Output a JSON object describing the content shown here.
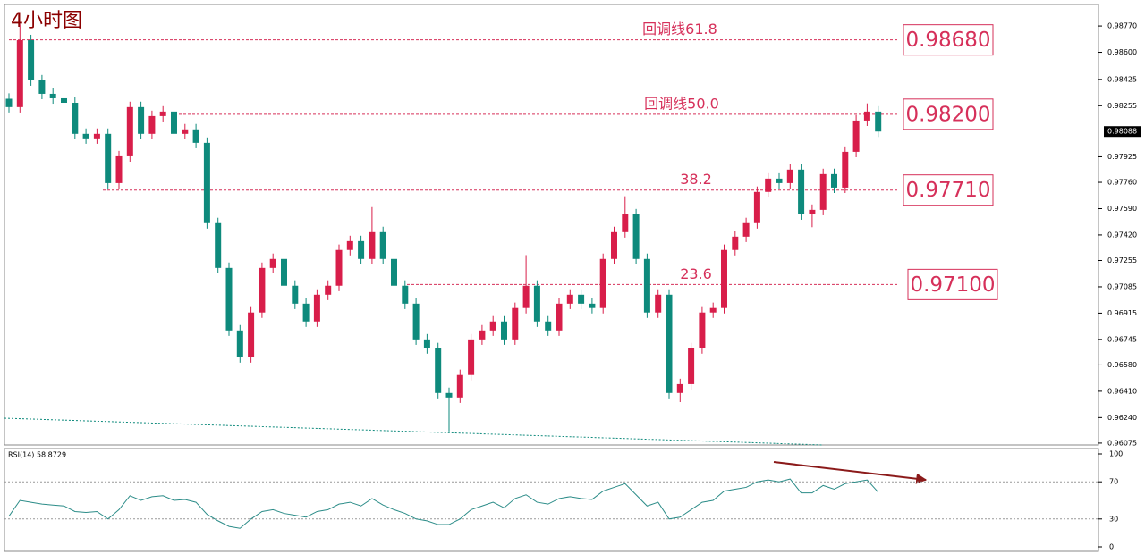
{
  "chart_data": [
    {
      "type": "candlestick",
      "title": "4小时图",
      "open": [
        0.983,
        0.98246,
        0.98678,
        0.98419,
        0.98332,
        0.98303,
        0.98274,
        0.98073,
        0.98044,
        0.98073,
        0.97755,
        0.97928,
        0.98246,
        0.98073,
        0.98188,
        0.98217,
        0.98073,
        0.98102,
        0.98015,
        0.97496,
        0.97207,
        0.96803,
        0.9663,
        0.96919,
        0.97207,
        0.97265,
        0.97092,
        0.96976,
        0.96861,
        0.97034,
        0.97092,
        0.97323,
        0.9738,
        0.97265,
        0.97438,
        0.97265,
        0.97092,
        0.96976,
        0.96745,
        0.96688,
        0.96399,
        0.9637,
        0.96515,
        0.96745,
        0.96803,
        0.96861,
        0.96745,
        0.96948,
        0.97092,
        0.96861,
        0.96803,
        0.96976,
        0.97034,
        0.96976,
        0.96948,
        0.97265,
        0.97438,
        0.97553,
        0.97265,
        0.96919,
        0.97034,
        0.96399,
        0.96456,
        0.96688,
        0.96919,
        0.96948,
        0.97323,
        0.97409,
        0.97496,
        0.97698,
        0.97784,
        0.97755,
        0.97842,
        0.97553,
        0.97582,
        0.97813,
        0.97726,
        0.97957,
        0.98159,
        0.98217
      ],
      "high": [
        0.98335,
        0.9878,
        0.98713,
        0.98454,
        0.98367,
        0.98338,
        0.98309,
        0.98108,
        0.98108,
        0.98108,
        0.97963,
        0.98281,
        0.98281,
        0.98223,
        0.98252,
        0.98252,
        0.98137,
        0.98137,
        0.9805,
        0.97531,
        0.97242,
        0.96838,
        0.96954,
        0.97242,
        0.973,
        0.973,
        0.97127,
        0.97011,
        0.97069,
        0.97127,
        0.97358,
        0.97415,
        0.97415,
        0.976,
        0.97473,
        0.973,
        0.97127,
        0.97011,
        0.9678,
        0.96723,
        0.96434,
        0.9655,
        0.9678,
        0.96838,
        0.96896,
        0.96896,
        0.96983,
        0.9729,
        0.97127,
        0.96896,
        0.97011,
        0.97069,
        0.97069,
        0.97011,
        0.973,
        0.97473,
        0.9767,
        0.97588,
        0.973,
        0.97069,
        0.97069,
        0.96491,
        0.96723,
        0.96954,
        0.96983,
        0.97358,
        0.97444,
        0.97531,
        0.97733,
        0.97819,
        0.97819,
        0.97877,
        0.97877,
        0.97617,
        0.97848,
        0.97848,
        0.97992,
        0.98194,
        0.9827,
        0.98252
      ],
      "low": [
        0.98211,
        0.98211,
        0.98384,
        0.98297,
        0.98268,
        0.98239,
        0.98038,
        0.98009,
        0.98009,
        0.9772,
        0.9772,
        0.97893,
        0.98038,
        0.98038,
        0.98153,
        0.98038,
        0.98038,
        0.9798,
        0.97461,
        0.97172,
        0.96768,
        0.96595,
        0.96595,
        0.96884,
        0.97172,
        0.97057,
        0.96941,
        0.96826,
        0.96826,
        0.96999,
        0.97057,
        0.97288,
        0.9723,
        0.9723,
        0.9723,
        0.97057,
        0.96941,
        0.9671,
        0.96653,
        0.96364,
        0.9615,
        0.96335,
        0.9648,
        0.9671,
        0.96768,
        0.9671,
        0.9671,
        0.96913,
        0.96826,
        0.96768,
        0.96768,
        0.96941,
        0.96941,
        0.96913,
        0.96913,
        0.9723,
        0.97403,
        0.9723,
        0.96884,
        0.96884,
        0.96364,
        0.9634,
        0.96421,
        0.96653,
        0.96884,
        0.96913,
        0.97288,
        0.97374,
        0.97461,
        0.97663,
        0.9772,
        0.9772,
        0.97518,
        0.9747,
        0.97547,
        0.97691,
        0.97691,
        0.97922,
        0.98124,
        0.98053
      ],
      "close": [
        0.98246,
        0.98678,
        0.98419,
        0.98332,
        0.98303,
        0.98274,
        0.98073,
        0.98044,
        0.98073,
        0.97755,
        0.97928,
        0.98246,
        0.98073,
        0.98188,
        0.98217,
        0.98073,
        0.98102,
        0.98015,
        0.97496,
        0.97207,
        0.96803,
        0.9663,
        0.96919,
        0.97207,
        0.97265,
        0.97092,
        0.96976,
        0.96861,
        0.97034,
        0.97092,
        0.97323,
        0.9738,
        0.97265,
        0.97438,
        0.97265,
        0.97092,
        0.96976,
        0.96745,
        0.96688,
        0.96399,
        0.9637,
        0.96515,
        0.96745,
        0.96803,
        0.96861,
        0.96745,
        0.96948,
        0.97092,
        0.96861,
        0.96803,
        0.96976,
        0.97034,
        0.96976,
        0.96948,
        0.97265,
        0.97438,
        0.97553,
        0.97265,
        0.96919,
        0.97034,
        0.96399,
        0.96456,
        0.96688,
        0.96919,
        0.96948,
        0.97323,
        0.97409,
        0.97496,
        0.97698,
        0.97784,
        0.97755,
        0.97842,
        0.97553,
        0.97582,
        0.97813,
        0.97726,
        0.97957,
        0.98159,
        0.98217,
        0.98088
      ],
      "up_color": "#d81e4a",
      "down_color": "#0e8a7c",
      "ylim": [
        0.96063,
        0.98909
      ],
      "yticks": [
        {
          "value": 0.9877,
          "label": "0.98770"
        },
        {
          "value": 0.986,
          "label": "0.98600"
        },
        {
          "value": 0.98425,
          "label": "0.98425"
        },
        {
          "value": 0.98255,
          "label": "0.98255"
        },
        {
          "value": 0.97925,
          "label": "0.97925"
        },
        {
          "value": 0.9776,
          "label": "0.97760"
        },
        {
          "value": 0.9759,
          "label": "0.97590"
        },
        {
          "value": 0.9742,
          "label": "0.97420"
        },
        {
          "value": 0.97255,
          "label": "0.97255"
        },
        {
          "value": 0.97085,
          "label": "0.97085"
        },
        {
          "value": 0.96915,
          "label": "0.96915"
        },
        {
          "value": 0.96745,
          "label": "0.96745"
        },
        {
          "value": 0.9658,
          "label": "0.96580"
        },
        {
          "value": 0.9641,
          "label": "0.96410"
        },
        {
          "value": 0.9624,
          "label": "0.96240"
        },
        {
          "value": 0.96075,
          "label": "0.96075"
        }
      ],
      "current_price": 0.98088,
      "annotations": [
        {
          "label": "回调线61.8",
          "value": 0.9868,
          "value_label": "0.98680"
        },
        {
          "label": "回调线50.0",
          "value": 0.982,
          "value_label": "0.98200"
        },
        {
          "label": "38.2",
          "value": 0.9771,
          "value_label": "0.97710"
        },
        {
          "label": "23.6",
          "value": 0.971,
          "value_label": "0.97100"
        }
      ],
      "annotation_color": "#d6305a"
    },
    {
      "type": "line",
      "title": "RSI(14) 58.8729",
      "color": "#2b8c88",
      "values": [
        33,
        50,
        48,
        46,
        45,
        44,
        38,
        37,
        38,
        30,
        40,
        55,
        50,
        54,
        55,
        50,
        51,
        48,
        35,
        28,
        22,
        20,
        30,
        38,
        40,
        36,
        34,
        32,
        38,
        40,
        46,
        48,
        44,
        52,
        45,
        40,
        36,
        30,
        28,
        24,
        24,
        30,
        40,
        44,
        48,
        42,
        52,
        56,
        48,
        46,
        52,
        54,
        52,
        51,
        60,
        64,
        68,
        56,
        44,
        48,
        30,
        32,
        40,
        48,
        50,
        60,
        62,
        64,
        70,
        72,
        70,
        73,
        58,
        58,
        66,
        62,
        68,
        70,
        72,
        58.8729
      ],
      "ylim": [
        0,
        100
      ],
      "yticks": [
        0,
        30,
        70,
        100
      ],
      "levels": [
        30,
        70
      ]
    }
  ]
}
